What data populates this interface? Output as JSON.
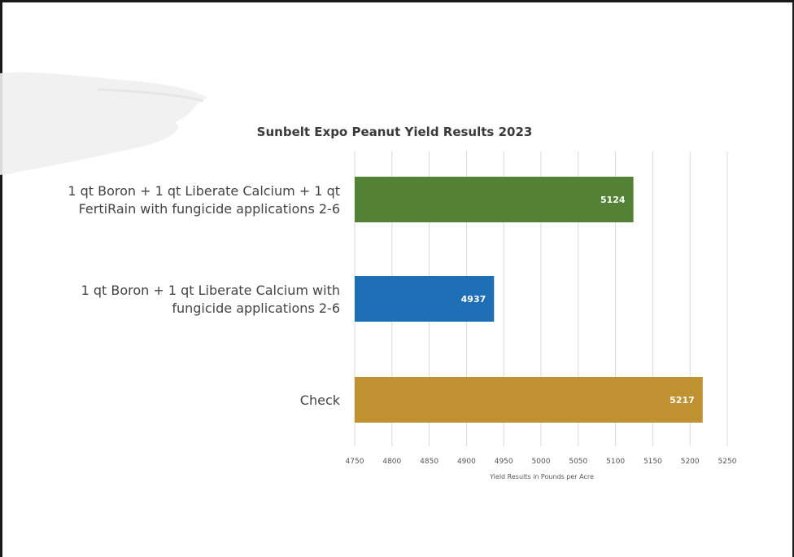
{
  "chart_data": {
    "type": "bar",
    "orientation": "horizontal",
    "title": "Sunbelt Expo Peanut Yield Results 2023",
    "xlabel": "Yield Results in Pounds per Acre",
    "ylabel": "",
    "xlim": [
      4750,
      5250
    ],
    "ticks": [
      4750,
      4800,
      4850,
      4900,
      4950,
      5000,
      5050,
      5100,
      5150,
      5200,
      5250
    ],
    "grid": true,
    "categories": [
      {
        "label_lines": [
          "1 qt Boron + 1 qt Liberate Calcium + 1 qt",
          "FertiRain with fungicide applications 2-6"
        ],
        "value": 5124,
        "color": "#548235"
      },
      {
        "label_lines": [
          "1 qt Boron + 1 qt Liberate Calcium with",
          "fungicide applications 2-6"
        ],
        "value": 4937,
        "color": "#1f6fb7"
      },
      {
        "label_lines": [
          "Check"
        ],
        "value": 5217,
        "color": "#bf9131"
      }
    ]
  }
}
